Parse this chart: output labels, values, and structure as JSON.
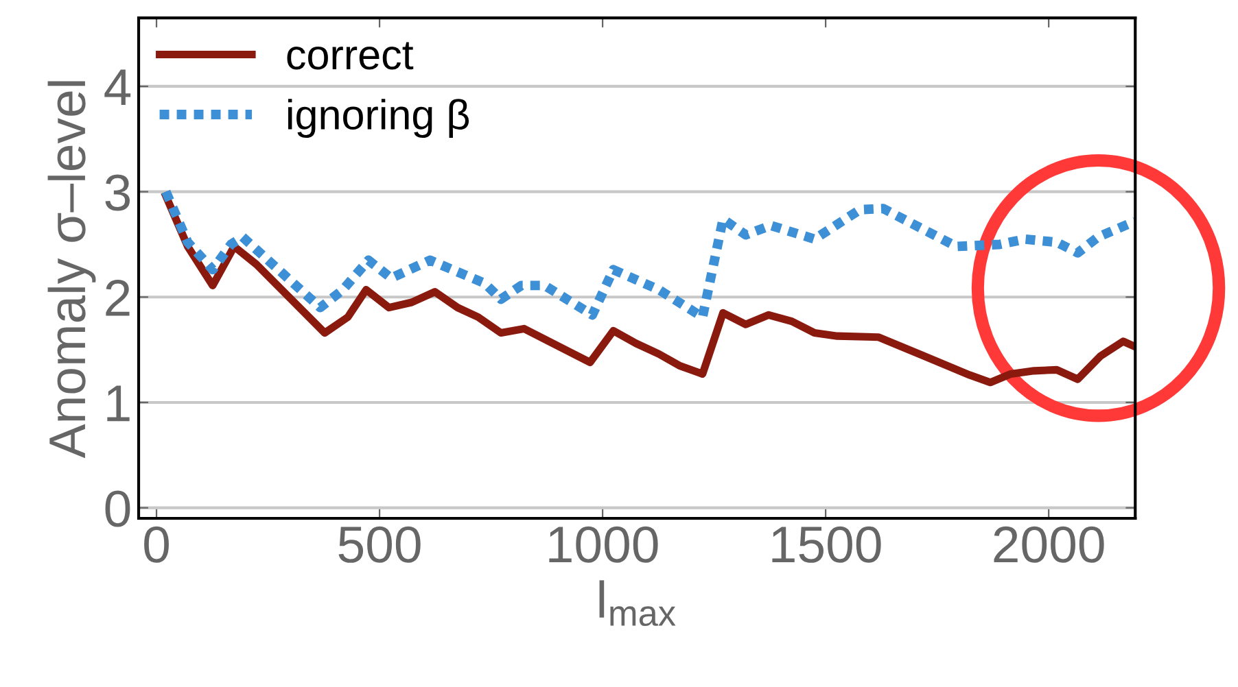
{
  "chart_data": {
    "type": "line",
    "xlabel": "l$_{max}$",
    "ylabel": "Anomaly σ–level",
    "xlim": [
      -40,
      2194
    ],
    "ylim": [
      -0.1,
      4.65
    ],
    "xticks": [
      0,
      500,
      1000,
      1500,
      2000
    ],
    "yticks": [
      0,
      1,
      2,
      3,
      4
    ],
    "grid": "y",
    "legend": "top left",
    "series": [
      {
        "name": "correct",
        "color": "#8b1a0e",
        "line_style": "solid",
        "x": [
          21,
          70,
          126,
          174,
          224,
          377,
          429,
          470,
          521,
          572,
          624,
          675,
          721,
          772,
          824,
          972,
          1024,
          1075,
          1126,
          1172,
          1224,
          1270,
          1321,
          1372,
          1424,
          1475,
          1526,
          1618,
          1721,
          1823,
          1869,
          1915,
          1967,
          2018,
          2065,
          2116,
          2167,
          2193
        ],
        "values": [
          2.96,
          2.48,
          2.11,
          2.48,
          2.31,
          1.66,
          1.81,
          2.07,
          1.9,
          1.95,
          2.05,
          1.9,
          1.81,
          1.66,
          1.7,
          1.38,
          1.68,
          1.56,
          1.46,
          1.35,
          1.27,
          1.85,
          1.74,
          1.83,
          1.77,
          1.66,
          1.63,
          1.62,
          1.44,
          1.26,
          1.19,
          1.27,
          1.3,
          1.31,
          1.22,
          1.44,
          1.58,
          1.53
        ]
      },
      {
        "name": "ignoring β",
        "color": "#3d8fd6",
        "line_style": "dotted",
        "x": [
          21,
          70,
          126,
          167,
          193,
          367,
          418,
          475,
          526,
          613,
          736,
          772,
          818,
          870,
          977,
          1024,
          1126,
          1224,
          1270,
          1321,
          1377,
          1475,
          1577,
          1629,
          1793,
          1890,
          1947,
          2018,
          2065,
          2111,
          2193
        ],
        "values": [
          3.0,
          2.52,
          2.26,
          2.5,
          2.57,
          1.9,
          2.07,
          2.35,
          2.18,
          2.35,
          2.13,
          1.98,
          2.11,
          2.11,
          1.83,
          2.26,
          2.07,
          1.81,
          2.74,
          2.59,
          2.68,
          2.55,
          2.83,
          2.84,
          2.48,
          2.5,
          2.55,
          2.52,
          2.42,
          2.57,
          2.72
        ]
      }
    ]
  }
}
